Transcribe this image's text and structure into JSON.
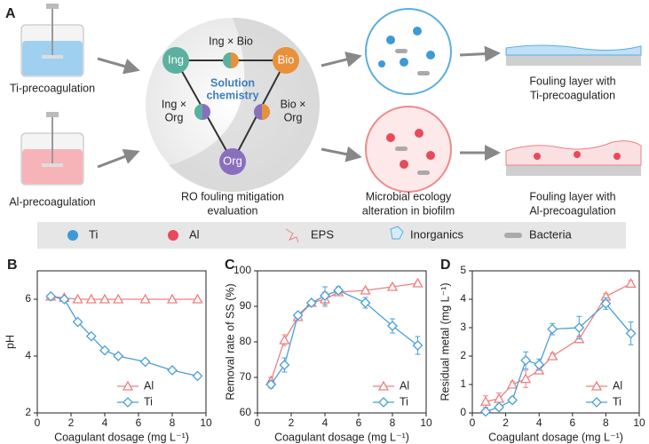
{
  "panel_a": {
    "label": "A",
    "ti_precoagulation": "Ti-precoagulation",
    "al_precoagulation": "Al-precoagulation",
    "nodes": {
      "ing": "Ing",
      "bio": "Bio",
      "org": "Org",
      "ing_bio": "Ing × Bio",
      "ing_org": [
        "Ing ×",
        "Org"
      ],
      "bio_org": [
        "Bio ×",
        "Org"
      ],
      "center": [
        "Solution",
        "chemistry"
      ]
    },
    "ro_caption": [
      "RO fouling mitigation",
      "evaluation"
    ],
    "microbial_caption": [
      "Microbial ecology",
      "alteration in biofilm"
    ],
    "fouling_ti": [
      "Fouling layer with",
      "Ti-precoagulation"
    ],
    "fouling_al": [
      "Fouling layer with",
      "Al-precoagulation"
    ],
    "legend": [
      "Ti",
      "Al",
      "EPS",
      "Inorganics",
      "Bacteria"
    ]
  },
  "chart_data": [
    {
      "type": "line",
      "panel": "B",
      "xlabel": "Coagulant dosage (mg L⁻¹)",
      "ylabel": "pH",
      "x": [
        0.8,
        1.6,
        2.4,
        3.2,
        4.0,
        4.8,
        6.4,
        8.0,
        9.5
      ],
      "xlim": [
        0,
        10
      ],
      "xticks": [
        0,
        2,
        4,
        6,
        8,
        10
      ],
      "ylim": [
        2,
        7
      ],
      "yticks": [
        2,
        4,
        6
      ],
      "legend": "lower center",
      "series": [
        {
          "name": "Al",
          "color": "#ee8080",
          "marker": "triangle",
          "values": [
            6.1,
            6.05,
            6.0,
            6.0,
            6.0,
            6.0,
            6.0,
            6.0,
            6.0
          ]
        },
        {
          "name": "Ti",
          "color": "#4a9fd8",
          "marker": "diamond",
          "values": [
            6.1,
            6.0,
            5.2,
            4.7,
            4.2,
            4.0,
            3.8,
            3.5,
            3.3
          ]
        }
      ]
    },
    {
      "type": "line",
      "panel": "C",
      "xlabel": "Coagulant dosage (mg L⁻¹)",
      "ylabel": "Removal rate of SS (%)",
      "x": [
        0.8,
        1.6,
        2.4,
        3.2,
        4.0,
        4.8,
        6.4,
        8.0,
        9.5
      ],
      "xlim": [
        0,
        10
      ],
      "xticks": [
        0,
        2,
        4,
        6,
        8,
        10
      ],
      "ylim": [
        60,
        100
      ],
      "yticks": [
        60,
        70,
        80,
        90,
        100
      ],
      "legend": "lower right",
      "series": [
        {
          "name": "Al",
          "color": "#ee8080",
          "marker": "triangle",
          "values": [
            69,
            80.5,
            87,
            91,
            92,
            94,
            94.5,
            95.5,
            96.5
          ],
          "errors": [
            1,
            1.5,
            0.5,
            0.5,
            2,
            0.5,
            0.5,
            0.5,
            0.5
          ]
        },
        {
          "name": "Ti",
          "color": "#4a9fd8",
          "marker": "diamond",
          "values": [
            68,
            73.5,
            87.5,
            91,
            93,
            94.5,
            91,
            84.5,
            79
          ],
          "errors": [
            1,
            2,
            0.5,
            0.5,
            2.5,
            1,
            1.5,
            2,
            2.5
          ]
        }
      ]
    },
    {
      "type": "line",
      "panel": "D",
      "xlabel": "Coagulant dosage (mg L⁻¹)",
      "ylabel": "Residual metal (mg L⁻¹)",
      "x": [
        0.8,
        1.6,
        2.4,
        3.2,
        4.0,
        4.8,
        6.4,
        8.0,
        9.5
      ],
      "xlim": [
        0,
        10
      ],
      "xticks": [
        0,
        2,
        4,
        6,
        8,
        10
      ],
      "ylim": [
        0,
        5
      ],
      "yticks": [
        0,
        1,
        2,
        3,
        4,
        5
      ],
      "legend": "lower right",
      "series": [
        {
          "name": "Al",
          "color": "#ee8080",
          "marker": "triangle",
          "values": [
            0.4,
            0.5,
            1.0,
            1.2,
            1.5,
            2.0,
            2.6,
            4.1,
            4.55
          ],
          "errors": [
            0.2,
            0.2,
            0.1,
            0.3,
            0.1,
            0.1,
            0.1,
            0.1,
            0.1
          ]
        },
        {
          "name": "Ti",
          "color": "#4a9fd8",
          "marker": "diamond",
          "values": [
            0.05,
            0.2,
            0.45,
            1.85,
            1.7,
            2.95,
            3.0,
            3.85,
            2.8
          ],
          "errors": [
            0.1,
            0.1,
            0.1,
            0.3,
            0.2,
            0.2,
            0.4,
            0.2,
            0.4
          ]
        }
      ]
    }
  ]
}
